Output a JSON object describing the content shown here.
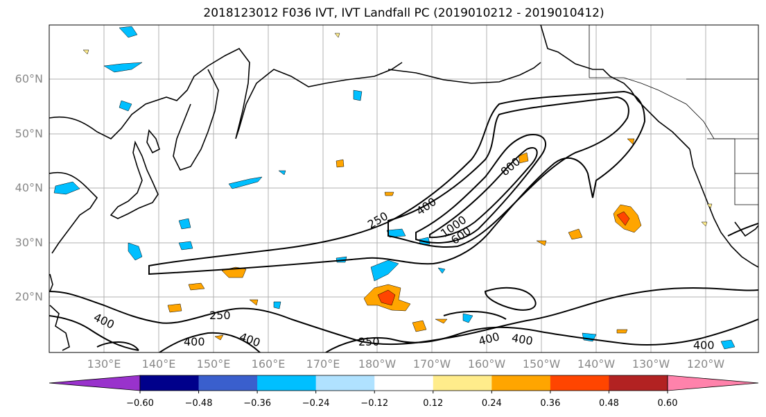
{
  "title": "2018123012 F036 IVT, IVT Landfall PC (2019010212 - 2019010412)",
  "lat_labels": [
    "60°N",
    "50°N",
    "40°N",
    "30°N",
    "20°N"
  ],
  "lon_labels": [
    "130°E",
    "140°E",
    "150°E",
    "160°E",
    "170°E",
    "180°W",
    "170°W",
    "160°W",
    "150°W",
    "140°W",
    "130°W",
    "120°W"
  ],
  "contour_labels": [
    "250",
    "400",
    "800",
    "1000",
    "600",
    "250",
    "400",
    "400",
    "250",
    "400",
    "400",
    "400"
  ],
  "colorbar": {
    "ticks": [
      "−0.60",
      "−0.48",
      "−0.36",
      "−0.24",
      "−0.12",
      "0.12",
      "0.24",
      "0.36",
      "0.48",
      "0.60"
    ],
    "colors": [
      "#9932cc",
      "#00008b",
      "#3a5fcd",
      "#00bfff",
      "#b0e2ff",
      "#ffffff",
      "#ffec8b",
      "#ffa500",
      "#ff4500",
      "#b22222",
      "#ff82ab"
    ]
  },
  "colors": {
    "land": "#000000",
    "grid": "#b0b0b0",
    "ivt_contour": "#000000"
  }
}
